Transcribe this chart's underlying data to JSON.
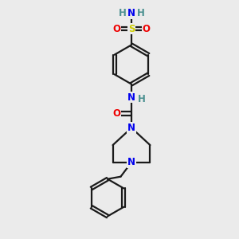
{
  "bg_color": "#ebebeb",
  "bond_color": "#1a1a1a",
  "N_color": "#0000ee",
  "O_color": "#ee0000",
  "S_color": "#cccc00",
  "H_color": "#4a9090",
  "line_width": 1.6,
  "font_size_atom": 8.5,
  "fig_size": [
    3.0,
    3.0
  ],
  "dpi": 100,
  "xlim": [
    0,
    10
  ],
  "ylim": [
    0,
    10
  ]
}
